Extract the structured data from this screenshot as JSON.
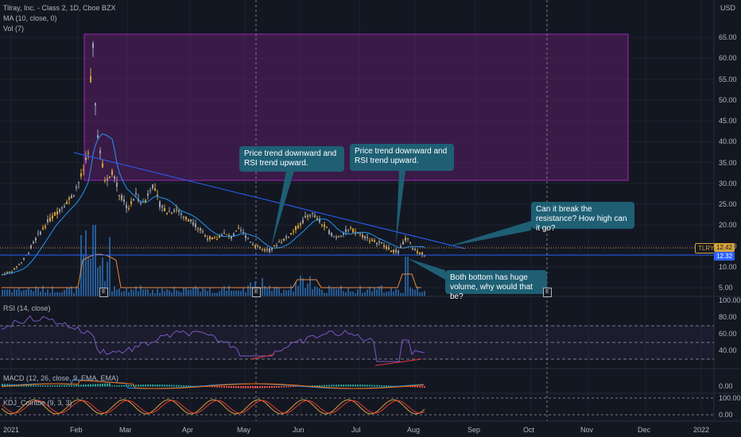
{
  "symbol": {
    "title": "Tilray, Inc. - Class 2, 1D, Cboe BZX",
    "ma_label": "MA (10, close, 0)",
    "vol_label": "Vol (7)",
    "currency": "USD",
    "ticker": "TLRY",
    "last_price": "12.42",
    "support_price": "12.32"
  },
  "indicators": {
    "rsi_label": "RSI (14, close)",
    "macd_label": "MACD (12, 26, close, 9, EMA, EMA)",
    "kdj_label": "KDJ_Cointbe (9, 3, 3)"
  },
  "annotations": {
    "callout_1": "Price trend downward and RSI trend upward.",
    "callout_2": "Price trend downward and RSI trend upward.",
    "callout_3": "Can it break the resistance? How high can it go?",
    "callout_4": "Both bottom has huge volume, why would that be?"
  },
  "earnings_marker": "E",
  "price_axis": [
    "65.00",
    "60.00",
    "55.00",
    "50.00",
    "45.00",
    "40.00",
    "35.00",
    "30.00",
    "25.00",
    "20.00",
    "15.00",
    "10.00",
    "5.00"
  ],
  "rsi_axis": [
    "100.00",
    "80.00",
    "60.00",
    "40.00"
  ],
  "macd_axis": [
    "0.00"
  ],
  "kdj_axis": [
    "100.00",
    "0.00"
  ],
  "time_axis": [
    "2021",
    "Feb",
    "Mar",
    "Apr",
    "May",
    "Jun",
    "Jul",
    "Aug",
    "Sep",
    "Oct",
    "Nov",
    "Dec",
    "2022"
  ],
  "colors": {
    "background": "#131722",
    "up_candle": "#d6a23a",
    "ma_line": "#2196f3",
    "rsi_line": "#7e57c2",
    "trendline": "#2962ff",
    "support_line": "#2962ff",
    "callout_bg": "#1e5f74",
    "rect_fill": "#5b1f66",
    "rect_border": "#9c27b0"
  }
}
